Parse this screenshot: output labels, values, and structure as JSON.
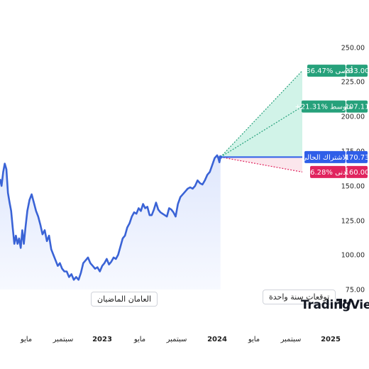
{
  "colors": {
    "price_line": "#3a63d6",
    "history_fill": "#eef2fd",
    "forecast_fill": "#c9f1e4",
    "teal": "#26a17b",
    "blue": "#2f5ee8",
    "red": "#e0245e",
    "axis_text": "#222222"
  },
  "labels": {
    "history": "العامان الماضيان",
    "forecast": "توقعات سنة واحدة",
    "brand": "TradingView"
  },
  "chart_data": {
    "type": "line",
    "y_ticks": [
      "250.00",
      "225.00",
      "200.00",
      "175.00",
      "150.00",
      "125.00",
      "100.00",
      "75.00"
    ],
    "y_tick_values": [
      250,
      225,
      200,
      175,
      150,
      125,
      100,
      75
    ],
    "ylim": [
      70,
      255
    ],
    "x_ticks": [
      {
        "label": "مايو",
        "t": 2022.33,
        "bold": false
      },
      {
        "label": "سبتمبر",
        "t": 2022.67,
        "bold": false
      },
      {
        "label": "2023",
        "t": 2023.0,
        "bold": true
      },
      {
        "label": "مايو",
        "t": 2023.33,
        "bold": false
      },
      {
        "label": "سبتمبر",
        "t": 2023.67,
        "bold": false
      },
      {
        "label": "2024",
        "t": 2024.0,
        "bold": true
      },
      {
        "label": "مايو",
        "t": 2024.33,
        "bold": false
      },
      {
        "label": "سبتمبر",
        "t": 2024.67,
        "bold": false
      },
      {
        "label": "2025",
        "t": 2025.0,
        "bold": true
      }
    ],
    "xlim": [
      2022.0,
      2025.15
    ],
    "history": {
      "t": [
        2022.0,
        2022.02,
        2022.04,
        2022.06,
        2022.08,
        2022.1,
        2022.12,
        2022.14,
        2022.16,
        2022.18,
        2022.2,
        2022.22,
        2022.24,
        2022.26,
        2022.28,
        2022.3,
        2022.32,
        2022.34,
        2022.36,
        2022.38,
        2022.4,
        2022.42,
        2022.44,
        2022.46,
        2022.48,
        2022.5,
        2022.52,
        2022.54,
        2022.56,
        2022.58,
        2022.6,
        2022.62,
        2022.64,
        2022.66,
        2022.68,
        2022.7,
        2022.72,
        2022.74,
        2022.76,
        2022.78,
        2022.8,
        2022.82,
        2022.84,
        2022.86,
        2022.88,
        2022.9,
        2022.92,
        2022.94,
        2022.96,
        2022.98,
        2023.0,
        2023.02,
        2023.04,
        2023.06,
        2023.08,
        2023.1,
        2023.12,
        2023.14,
        2023.16,
        2023.18,
        2023.2,
        2023.22,
        2023.24,
        2023.26,
        2023.28,
        2023.3,
        2023.32,
        2023.34,
        2023.36,
        2023.38,
        2023.4,
        2023.42,
        2023.44,
        2023.46,
        2023.48,
        2023.5,
        2023.52,
        2023.54,
        2023.56,
        2023.58,
        2023.6,
        2023.62,
        2023.64,
        2023.66,
        2023.68,
        2023.7,
        2023.72,
        2023.74,
        2023.76,
        2023.78,
        2023.8,
        2023.82,
        2023.84,
        2023.86,
        2023.88,
        2023.9,
        2023.92,
        2023.94,
        2023.96,
        2023.98,
        2024.0,
        2024.01,
        2024.02,
        2024.03
      ],
      "y": [
        155,
        150,
        160,
        166,
        162,
        145,
        138,
        132,
        120,
        108,
        114,
        108,
        112,
        105,
        118,
        108,
        120,
        132,
        140,
        144,
        138,
        132,
        128,
        122,
        115,
        118,
        110,
        114,
        104,
        100,
        96,
        92,
        94,
        90,
        88,
        88,
        84,
        86,
        82,
        84,
        82,
        87,
        94,
        96,
        98,
        94,
        92,
        90,
        91,
        88,
        92,
        94,
        97,
        93,
        95,
        98,
        97,
        100,
        106,
        112,
        114,
        120,
        123,
        128,
        131,
        130,
        134,
        132,
        137,
        134,
        135,
        129,
        129,
        133,
        138,
        133,
        131,
        130,
        129,
        128,
        134,
        133,
        131,
        128,
        137,
        142,
        144,
        146,
        148,
        149,
        148,
        150,
        154,
        152,
        151,
        154,
        158,
        160,
        165,
        170,
        172,
        170,
        167,
        171
      ]
    },
    "current": {
      "label": "الاشتراك الحالي",
      "value": 170.73,
      "value_text": "170.73"
    },
    "forecasts": [
      {
        "name": "max",
        "label": "+36.47% أقصى",
        "value": 233.0,
        "value_text": "233.00",
        "color": "#26a17b"
      },
      {
        "name": "avg",
        "label": "+21.31% متوسط",
        "value": 207.11,
        "value_text": "207.11",
        "color": "#26a17b"
      },
      {
        "name": "min",
        "label": "-6.28% أدنى",
        "value": 160.0,
        "value_text": "160.00",
        "color": "#e0245e"
      }
    ],
    "forecast_end_t": 2025.0
  }
}
